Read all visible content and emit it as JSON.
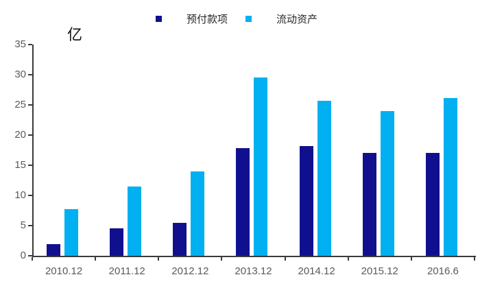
{
  "chart_data": {
    "type": "bar",
    "title": "",
    "categories": [
      "2010.12",
      "2011.12",
      "2012.12",
      "2013.12",
      "2014.12",
      "2015.12",
      "2016.6"
    ],
    "series": [
      {
        "key": "prepayments",
        "name": "预付款项",
        "color": "#10108E",
        "values": [
          1.9,
          4.6,
          5.5,
          17.8,
          18.2,
          17.1,
          17.0
        ]
      },
      {
        "key": "current-assets",
        "name": "流动资产",
        "color": "#00B0F0",
        "values": [
          7.7,
          11.5,
          14.0,
          29.5,
          25.7,
          24.0,
          26.1
        ]
      }
    ],
    "xlabel": "",
    "ylabel": "亿",
    "ylim": [
      0,
      35
    ],
    "yticks": [
      0,
      5,
      10,
      15,
      20,
      25,
      30,
      35
    ],
    "grid": false,
    "legend_position": "top"
  },
  "colors": {
    "axis": "#3a3a3a",
    "tick_label": "#595959",
    "background": "#ffffff"
  }
}
